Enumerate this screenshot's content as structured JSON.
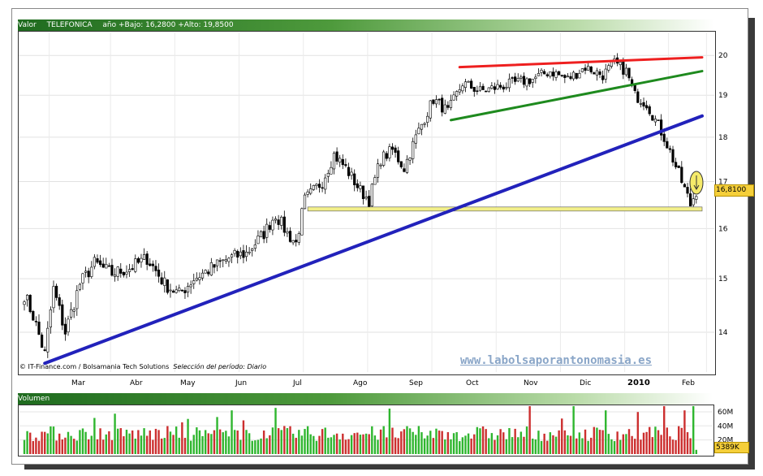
{
  "header": {
    "valor_label": "Valor",
    "ticker": "TELEFONICA",
    "range_text": "año +Bajo: 16,2800 +Alto: 19,8500"
  },
  "credit": {
    "source": "© IT-Finance.com / Bolsamania Tech Solutions",
    "period": "Selección del período: Diario"
  },
  "watermark": "www.labolsaporantonomasia.es",
  "last_price_label": "16,8100",
  "last_volume_label": "5389K",
  "volume_panel_title": "Volumen",
  "colors": {
    "up": "#2fb62f",
    "down": "#cc2f2f",
    "candle_up": "#ffffff",
    "candle_down": "#000000",
    "resistance_line": "#ee1f1f",
    "channel_support_line": "#1e8a1e",
    "long_trend_line": "#2222bb",
    "support_band": "#f2ef8a",
    "arrow_marker": "#f5ea6a"
  },
  "chart_data": {
    "type": "candlestick",
    "x_tick_labels": [
      "Mar",
      "Abr",
      "May",
      "Jun",
      "Jul",
      "Ago",
      "Sep",
      "Oct",
      "Nov",
      "Dic",
      "2010",
      "Feb"
    ],
    "y_ticks": [
      14,
      15,
      16,
      17,
      18,
      19,
      20
    ],
    "y_scale": "log",
    "ylim": [
      13.3,
      20.6
    ],
    "anchors": [
      {
        "d": 0,
        "v": 14.7
      },
      {
        "d": 3,
        "v": 14.3
      },
      {
        "d": 7,
        "v": 13.6
      },
      {
        "d": 10,
        "v": 14.8
      },
      {
        "d": 14,
        "v": 14.0
      },
      {
        "d": 19,
        "v": 14.9
      },
      {
        "d": 24,
        "v": 15.3
      },
      {
        "d": 30,
        "v": 15.1
      },
      {
        "d": 36,
        "v": 15.2
      },
      {
        "d": 42,
        "v": 15.4
      },
      {
        "d": 48,
        "v": 14.9
      },
      {
        "d": 53,
        "v": 14.7
      },
      {
        "d": 58,
        "v": 15.0
      },
      {
        "d": 64,
        "v": 15.2
      },
      {
        "d": 70,
        "v": 15.4
      },
      {
        "d": 76,
        "v": 15.5
      },
      {
        "d": 82,
        "v": 15.9
      },
      {
        "d": 86,
        "v": 16.3
      },
      {
        "d": 90,
        "v": 15.9
      },
      {
        "d": 93,
        "v": 15.7
      },
      {
        "d": 96,
        "v": 16.6
      },
      {
        "d": 102,
        "v": 17.0
      },
      {
        "d": 106,
        "v": 17.6
      },
      {
        "d": 110,
        "v": 17.3
      },
      {
        "d": 115,
        "v": 16.8
      },
      {
        "d": 118,
        "v": 16.6
      },
      {
        "d": 122,
        "v": 17.5
      },
      {
        "d": 126,
        "v": 17.7
      },
      {
        "d": 130,
        "v": 17.3
      },
      {
        "d": 134,
        "v": 18.0
      },
      {
        "d": 140,
        "v": 18.9
      },
      {
        "d": 145,
        "v": 18.6
      },
      {
        "d": 150,
        "v": 19.3
      },
      {
        "d": 156,
        "v": 19.1
      },
      {
        "d": 162,
        "v": 19.2
      },
      {
        "d": 168,
        "v": 19.3
      },
      {
        "d": 174,
        "v": 19.4
      },
      {
        "d": 180,
        "v": 19.6
      },
      {
        "d": 186,
        "v": 19.4
      },
      {
        "d": 192,
        "v": 19.7
      },
      {
        "d": 198,
        "v": 19.5
      },
      {
        "d": 202,
        "v": 19.8
      },
      {
        "d": 206,
        "v": 19.6
      },
      {
        "d": 209,
        "v": 19.0
      },
      {
        "d": 213,
        "v": 18.8
      },
      {
        "d": 216,
        "v": 18.4
      },
      {
        "d": 219,
        "v": 18.0
      },
      {
        "d": 222,
        "v": 17.5
      },
      {
        "d": 225,
        "v": 17.0
      },
      {
        "d": 228,
        "v": 16.5
      },
      {
        "d": 230,
        "v": 16.8
      }
    ],
    "annotations": [
      {
        "label": "resistance line",
        "from": {
          "d": 149,
          "v": 19.7
        },
        "to": {
          "d": 232,
          "v": 19.95
        }
      },
      {
        "label": "rising channel support",
        "from": {
          "d": 146,
          "v": 18.4
        },
        "to": {
          "d": 232,
          "v": 19.6
        }
      },
      {
        "label": "long-term uptrend",
        "from": {
          "d": 7,
          "v": 13.45
        },
        "to": {
          "d": 232,
          "v": 18.5
        }
      },
      {
        "label": "support band",
        "from": {
          "d": 97,
          "v": 16.4
        },
        "to": {
          "d": 232,
          "v": 16.4
        }
      }
    ],
    "volume": {
      "y_tick_labels": [
        "20M",
        "40M",
        "60M"
      ],
      "y_ticks": [
        20,
        40,
        60
      ],
      "unit": "M",
      "ylim": [
        0,
        68
      ]
    }
  }
}
